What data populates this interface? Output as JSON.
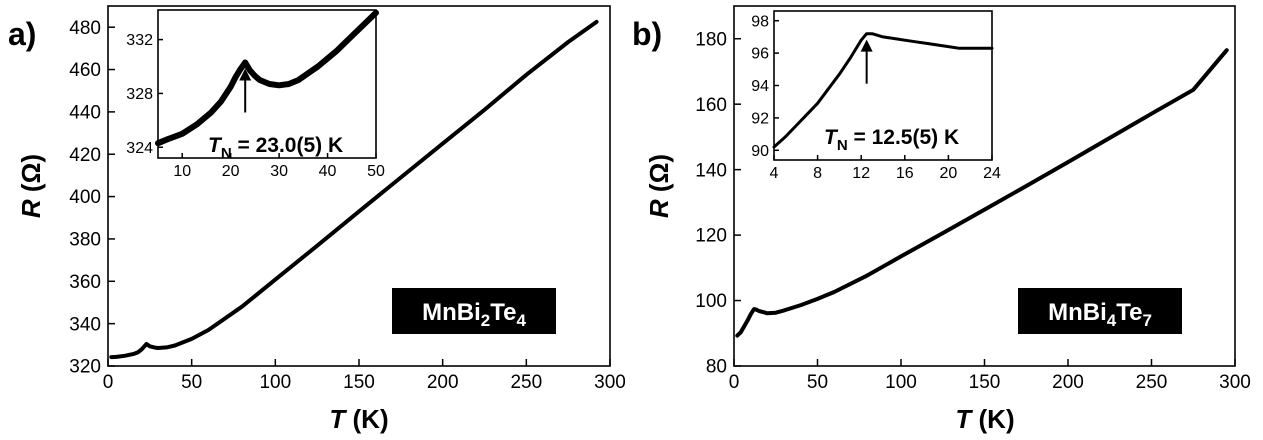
{
  "chart_data": [
    {
      "panel_label": "a)",
      "type": "line",
      "xlabel_var": "T",
      "xlabel_unit": " (K)",
      "ylabel_var": "R",
      "ylabel_unit": " (Ω)",
      "xlim": [
        0,
        300
      ],
      "ylim": [
        320,
        490
      ],
      "xticks": [
        0,
        50,
        100,
        150,
        200,
        250,
        300
      ],
      "yticks": [
        320,
        340,
        360,
        380,
        400,
        420,
        440,
        460,
        480
      ],
      "label_parts": [
        "MnBi",
        "2",
        "Te",
        "4"
      ],
      "series": [
        {
          "x": [
            2,
            5,
            10,
            15,
            18,
            20,
            22,
            23,
            25,
            28,
            30,
            35,
            40,
            50,
            60,
            80,
            100,
            125,
            150,
            175,
            200,
            225,
            250,
            275,
            292
          ],
          "y": [
            324.2,
            324.3,
            324.8,
            325.6,
            326.5,
            327.8,
            329.5,
            330.4,
            329.3,
            328.7,
            328.5,
            328.8,
            329.7,
            332.8,
            337.0,
            348.0,
            360.8,
            376.8,
            393.0,
            409.0,
            425.0,
            441.0,
            457.5,
            473.0,
            482.5
          ]
        }
      ],
      "inset": {
        "xlim": [
          5,
          50
        ],
        "ylim": [
          323.2,
          334.2
        ],
        "xticks": [
          10,
          20,
          30,
          40,
          50
        ],
        "yticks": [
          324,
          328,
          332
        ],
        "annotation_var": "T",
        "annotation_sub": "N",
        "annotation_text": " = 23.0(5) K",
        "arrow_at": [
          23,
          330.3
        ],
        "series": [
          {
            "x": [
              5,
              7,
              10,
              13,
              16,
              18,
              20,
              21,
              22,
              23,
              24,
              25,
              26,
              28,
              30,
              32,
              34,
              36,
              38,
              40,
              42,
              44,
              46,
              48,
              50
            ],
            "y": [
              324.3,
              324.6,
              325.0,
              325.7,
              326.6,
              327.4,
              328.5,
              329.2,
              329.8,
              330.3,
              329.7,
              329.3,
              329.0,
              328.7,
              328.6,
              328.7,
              329.0,
              329.5,
              330.0,
              330.6,
              331.2,
              331.9,
              332.6,
              333.3,
              334.0
            ]
          }
        ]
      }
    },
    {
      "panel_label": "b)",
      "type": "line",
      "xlabel_var": "T",
      "xlabel_unit": " (K)",
      "ylabel_var": "R",
      "ylabel_unit": " (Ω)",
      "xlim": [
        0,
        300
      ],
      "ylim": [
        80,
        190
      ],
      "xticks": [
        0,
        50,
        100,
        150,
        200,
        250,
        300
      ],
      "yticks": [
        80,
        100,
        120,
        140,
        160,
        180
      ],
      "label_parts": [
        "MnBi",
        "4",
        "Te",
        "7"
      ],
      "series": [
        {
          "x": [
            2,
            4,
            6,
            8,
            10,
            12,
            13,
            15,
            18,
            20,
            25,
            30,
            40,
            50,
            60,
            80,
            100,
            125,
            150,
            175,
            200,
            225,
            250,
            275,
            295
          ],
          "y": [
            89.3,
            90.3,
            92.0,
            93.8,
            95.8,
            97.4,
            97.3,
            96.8,
            96.4,
            96.1,
            96.3,
            97.0,
            98.6,
            100.5,
            102.6,
            107.7,
            113.5,
            120.6,
            127.8,
            135.0,
            142.3,
            149.7,
            157.1,
            164.4,
            176.5
          ]
        }
      ],
      "inset": {
        "xlim": [
          4,
          24
        ],
        "ylim": [
          89.4,
          98.6
        ],
        "xticks": [
          4,
          8,
          12,
          16,
          20,
          24
        ],
        "yticks": [
          90,
          92,
          94,
          96,
          98
        ],
        "annotation_var": "T",
        "annotation_sub": "N",
        "annotation_text": " = 12.5(5) K",
        "arrow_at": [
          12.5,
          97.2
        ],
        "series": [
          {
            "x": [
              4,
              5,
              6,
              7,
              8,
              9,
              10,
              11,
              12,
              12.5,
              13,
              14,
              15,
              16,
              17,
              18,
              19,
              20,
              21,
              22,
              23,
              24
            ],
            "y": [
              90.2,
              90.8,
              91.5,
              92.2,
              92.9,
              93.8,
              94.7,
              95.7,
              96.8,
              97.2,
              97.2,
              97.0,
              96.9,
              96.8,
              96.7,
              96.6,
              96.5,
              96.4,
              96.3,
              96.3,
              96.3,
              96.3
            ]
          }
        ]
      }
    }
  ]
}
